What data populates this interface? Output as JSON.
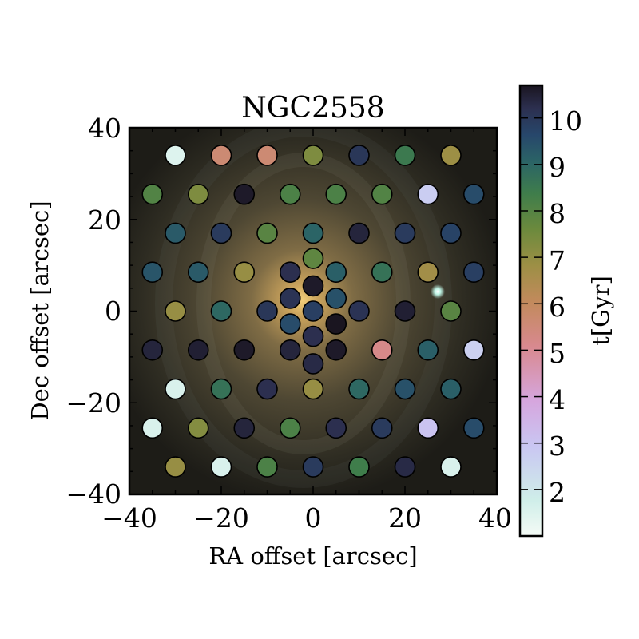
{
  "chart_data": {
    "type": "scatter",
    "title": "NGC2558",
    "xlabel": "RA offset [arcsec]",
    "ylabel": "Dec offset [arcsec]",
    "xlim": [
      -40,
      40
    ],
    "ylim": [
      -40,
      40
    ],
    "x_ticks": [
      "−40",
      "−20",
      "0",
      "20",
      "40"
    ],
    "y_ticks": [
      "−40",
      "−20",
      "0",
      "20",
      "40"
    ],
    "grid": false,
    "background": "galaxy image (NGC2558)",
    "colorbar": {
      "label": "t[Gyr]",
      "range": [
        1.0,
        10.7
      ],
      "ticks": [
        "2",
        "3",
        "4",
        "5",
        "6",
        "7",
        "8",
        "9",
        "10"
      ],
      "colormap": "cubehelix (reversed)"
    },
    "points": [
      {
        "x": -30,
        "y": 34,
        "t": 1.5
      },
      {
        "x": -20,
        "y": 34,
        "t": 5.6
      },
      {
        "x": -10,
        "y": 34,
        "t": 5.6
      },
      {
        "x": 0,
        "y": 34,
        "t": 7.3
      },
      {
        "x": 10,
        "y": 34,
        "t": 10.0
      },
      {
        "x": 20,
        "y": 34,
        "t": 8.4
      },
      {
        "x": 30,
        "y": 34,
        "t": 6.8
      },
      {
        "x": -35,
        "y": 25.5,
        "t": 8.0
      },
      {
        "x": -25,
        "y": 25.5,
        "t": 7.3
      },
      {
        "x": -15,
        "y": 25.5,
        "t": 10.6
      },
      {
        "x": -5,
        "y": 25.5,
        "t": 8.1
      },
      {
        "x": 5,
        "y": 25.5,
        "t": 8.1
      },
      {
        "x": 15,
        "y": 25.5,
        "t": 8.0
      },
      {
        "x": 25,
        "y": 25.5,
        "t": 2.8
      },
      {
        "x": 35,
        "y": 25.5,
        "t": 9.5
      },
      {
        "x": -30,
        "y": 17,
        "t": 9.2
      },
      {
        "x": -20,
        "y": 17,
        "t": 9.9
      },
      {
        "x": -10,
        "y": 17,
        "t": 7.9
      },
      {
        "x": 0,
        "y": 17,
        "t": 9.0
      },
      {
        "x": 10,
        "y": 17,
        "t": 10.4
      },
      {
        "x": 20,
        "y": 17,
        "t": 9.9
      },
      {
        "x": 30,
        "y": 17,
        "t": 9.7
      },
      {
        "x": 0,
        "y": 11.5,
        "t": 7.8
      },
      {
        "x": -35,
        "y": 8.5,
        "t": 9.3
      },
      {
        "x": -25,
        "y": 8.5,
        "t": 9.2
      },
      {
        "x": -15,
        "y": 8.5,
        "t": 6.9
      },
      {
        "x": -5,
        "y": 8.5,
        "t": 10.2
      },
      {
        "x": 5,
        "y": 8.5,
        "t": 9.1
      },
      {
        "x": 15,
        "y": 8.5,
        "t": 8.6
      },
      {
        "x": 25,
        "y": 8.5,
        "t": 6.7
      },
      {
        "x": 35,
        "y": 8.5,
        "t": 9.8
      },
      {
        "x": 0,
        "y": 5.5,
        "t": 10.6
      },
      {
        "x": -5,
        "y": 2.8,
        "t": 10.1
      },
      {
        "x": 5,
        "y": 2.8,
        "t": 9.4
      },
      {
        "x": -30,
        "y": 0,
        "t": 6.9
      },
      {
        "x": -20,
        "y": 0,
        "t": 8.9
      },
      {
        "x": -10,
        "y": 0,
        "t": 10.0
      },
      {
        "x": 0,
        "y": 0,
        "t": 9.8
      },
      {
        "x": 10,
        "y": 0,
        "t": 10.1
      },
      {
        "x": 20,
        "y": 0,
        "t": 10.5
      },
      {
        "x": 30,
        "y": 0,
        "t": 7.9
      },
      {
        "x": -5,
        "y": -2.8,
        "t": 9.5
      },
      {
        "x": 5,
        "y": -2.8,
        "t": 10.7
      },
      {
        "x": 0,
        "y": -5.5,
        "t": 10.2
      },
      {
        "x": -35,
        "y": -8.5,
        "t": 10.4
      },
      {
        "x": -25,
        "y": -8.5,
        "t": 10.5
      },
      {
        "x": -15,
        "y": -8.5,
        "t": 10.6
      },
      {
        "x": -5,
        "y": -8.5,
        "t": 10.4
      },
      {
        "x": 5,
        "y": -8.5,
        "t": 10.6
      },
      {
        "x": 15,
        "y": -8.5,
        "t": 5.2
      },
      {
        "x": 25,
        "y": -8.5,
        "t": 9.1
      },
      {
        "x": 35,
        "y": -8.5,
        "t": 2.7
      },
      {
        "x": 0,
        "y": -11.5,
        "t": 10.3
      },
      {
        "x": -30,
        "y": -17,
        "t": 1.6
      },
      {
        "x": -20,
        "y": -17,
        "t": 8.6
      },
      {
        "x": -10,
        "y": -17,
        "t": 10.2
      },
      {
        "x": 0,
        "y": -17,
        "t": 6.9
      },
      {
        "x": 10,
        "y": -17,
        "t": 8.9
      },
      {
        "x": 20,
        "y": -17,
        "t": 9.4
      },
      {
        "x": 30,
        "y": -17,
        "t": 9.1
      },
      {
        "x": -35,
        "y": -25.5,
        "t": 1.6
      },
      {
        "x": -25,
        "y": -25.5,
        "t": 7.2
      },
      {
        "x": -15,
        "y": -25.5,
        "t": 10.4
      },
      {
        "x": -5,
        "y": -25.5,
        "t": 8.1
      },
      {
        "x": 5,
        "y": -25.5,
        "t": 10.2
      },
      {
        "x": 15,
        "y": -25.5,
        "t": 9.9
      },
      {
        "x": 25,
        "y": -25.5,
        "t": 3.1
      },
      {
        "x": 35,
        "y": -25.5,
        "t": 9.5
      },
      {
        "x": -30,
        "y": -34,
        "t": 6.9
      },
      {
        "x": -20,
        "y": -34,
        "t": 1.6
      },
      {
        "x": -10,
        "y": -34,
        "t": 8.1
      },
      {
        "x": 0,
        "y": -34,
        "t": 9.9
      },
      {
        "x": 10,
        "y": -34,
        "t": 8.3
      },
      {
        "x": 20,
        "y": -34,
        "t": 10.3
      },
      {
        "x": 30,
        "y": -34,
        "t": 1.6
      }
    ]
  }
}
